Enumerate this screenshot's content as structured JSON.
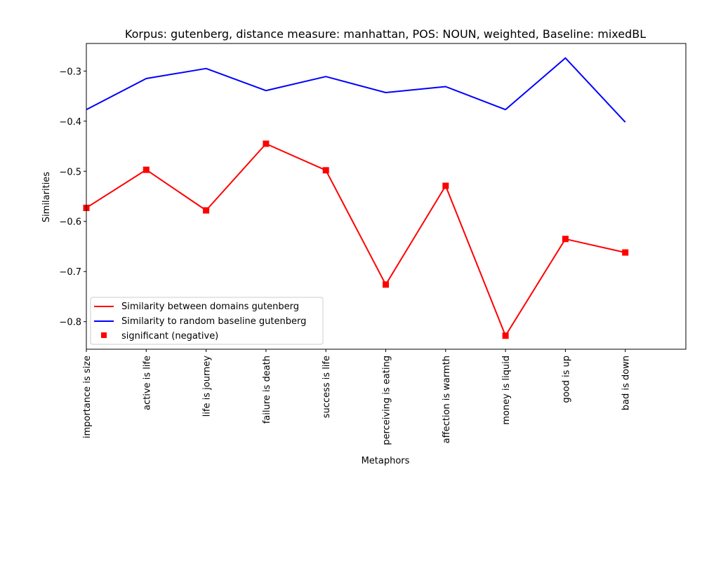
{
  "chart_data": {
    "type": "line",
    "title": "Korpus: gutenberg, distance measure: manhattan, POS: NOUN, weighted, Baseline: mixedBL",
    "xlabel": "Metaphors",
    "ylabel": "Similarities",
    "categories": [
      "importance is size",
      "active is life",
      "life is journey",
      "failure is death",
      "success is life",
      "perceiving is eating",
      "affection is warmth",
      "money is liquid",
      "good is up",
      "bad is down"
    ],
    "ylim": [
      -0.855,
      -0.245
    ],
    "yticks": [
      -0.8,
      -0.7,
      -0.6,
      -0.5,
      -0.4,
      -0.3
    ],
    "ytick_labels": [
      "−0.8",
      "−0.7",
      "−0.6",
      "−0.5",
      "−0.4",
      "−0.3"
    ],
    "grid": false,
    "legend_position": "lower-left",
    "series": [
      {
        "name": "Similarity between domains gutenberg",
        "color": "#ff0000",
        "values": [
          -0.573,
          -0.497,
          -0.578,
          -0.445,
          -0.498,
          -0.726,
          -0.529,
          -0.828,
          -0.635,
          -0.662
        ]
      },
      {
        "name": "Similarity to random baseline gutenberg",
        "color": "#0000ff",
        "values": [
          -0.377,
          -0.315,
          -0.295,
          -0.339,
          -0.311,
          -0.343,
          -0.331,
          -0.377,
          -0.274,
          -0.402
        ]
      }
    ],
    "markers": {
      "name": "significant (negative)",
      "color": "#ff0000",
      "shape": "square",
      "indices": [
        0,
        1,
        2,
        3,
        4,
        5,
        6,
        7,
        8,
        9
      ]
    }
  }
}
